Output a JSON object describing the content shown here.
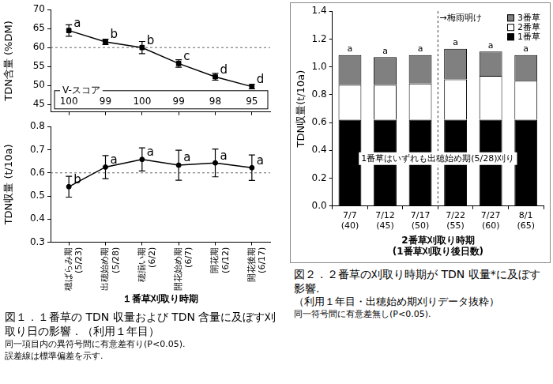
{
  "chart_data": [
    {
      "type": "line",
      "y_label": "TDN含量 (%DM)",
      "categories": [
        [
          "穂ばらみ期",
          "(5/23)"
        ],
        [
          "出穂始め期",
          "(5/28)"
        ],
        [
          "穂揃い期",
          "(6/2)"
        ],
        [
          "開花始め期",
          "(6/7)"
        ],
        [
          "開花期",
          "(6/12)"
        ],
        [
          "開花後期",
          "(6/17)"
        ]
      ],
      "values": [
        64.5,
        61.5,
        60.0,
        55.8,
        52.3,
        49.7
      ],
      "errors": [
        1.5,
        0.7,
        1.6,
        1.0,
        0.9,
        0.6
      ],
      "significance_letters": [
        "a",
        "b",
        "b",
        "c",
        "d",
        "d"
      ],
      "color": "#000000",
      "marker": "square",
      "ylim": [
        43,
        70
      ],
      "yticks": [
        45,
        50,
        55,
        60,
        65,
        70
      ],
      "reference_line": 60,
      "v_score": {
        "label": "V-スコア",
        "values": [
          100,
          99,
          100,
          99,
          98,
          95
        ]
      },
      "tick_labels": "y",
      "grid": false
    },
    {
      "type": "line",
      "y_label": "TDN収量 (t/10a)",
      "x_label": "１番草刈取り時期",
      "categories": [
        [
          "穂ばらみ期",
          "(5/23)"
        ],
        [
          "出穂始め期",
          "(5/28)"
        ],
        [
          "穂揃い期",
          "(6/2)"
        ],
        [
          "開花始め期",
          "(6/7)"
        ],
        [
          "開花期",
          "(6/12)"
        ],
        [
          "開花後期",
          "(6/17)"
        ]
      ],
      "values": [
        0.54,
        0.625,
        0.658,
        0.633,
        0.643,
        0.622
      ],
      "errors": [
        0.045,
        0.05,
        0.05,
        0.065,
        0.06,
        0.055
      ],
      "significance_letters": [
        "b",
        "a",
        "a",
        "a",
        "a",
        "a"
      ],
      "color": "#000000",
      "marker": "circle",
      "ylim": [
        0.3,
        0.8
      ],
      "yticks": [
        0.3,
        0.4,
        0.5,
        0.6,
        0.7,
        0.8
      ],
      "reference_line": 0.6,
      "grid": false
    },
    {
      "type": "bar",
      "stacked": true,
      "y_label": "TDN収量(t/10a)",
      "x_label": [
        "2番草刈取り時期",
        "(1番草刈取り後日数)"
      ],
      "categories": [
        [
          "7/7",
          "(40)"
        ],
        [
          "7/12",
          "(45)"
        ],
        [
          "7/17",
          "(50)"
        ],
        [
          "7/22",
          "(55)"
        ],
        [
          "7/27",
          "(60)"
        ],
        [
          "8/1",
          "(65)"
        ]
      ],
      "series": [
        {
          "name": "1番草",
          "color": "#000000",
          "values": [
            0.62,
            0.62,
            0.62,
            0.62,
            0.62,
            0.62
          ]
        },
        {
          "name": "2番草",
          "color": "#ffffff",
          "values": [
            0.25,
            0.25,
            0.26,
            0.29,
            0.315,
            0.28
          ]
        },
        {
          "name": "3番草",
          "color": "#808080",
          "values": [
            0.215,
            0.2,
            0.205,
            0.22,
            0.175,
            0.185
          ]
        }
      ],
      "significance_letters": [
        "a",
        "a",
        "a",
        "a",
        "a",
        "a"
      ],
      "ylim": [
        0,
        1.4
      ],
      "yticks": [
        {
          "value": 0,
          "label": "0.0"
        },
        0.2,
        0.4,
        0.6,
        0.8,
        {
          "value": 1,
          "label": "1.0"
        },
        1.2,
        1.4
      ],
      "legend": "upper right",
      "annotations": [
        {
          "text": "1番草はいずれも出穂始め期(5/28)刈り"
        }
      ],
      "divider": {
        "text": "→梅雨明け",
        "between": [
          "7/17",
          "7/22"
        ]
      },
      "grid": false
    }
  ],
  "captions": [
    {
      "title": "図１．１番草の TDN 収量および TDN 含量に及ぼす刈取り日の影響．（利用１年目）",
      "notes": [
        "同一項目内の異符号間に有意差有り(P<0.05).",
        "誤差線は標準偏差を示す."
      ]
    },
    {
      "title": "図２．２番草の刈取り時期が TDN 収量*に及ぼす影響.",
      "subtitle": "（利用１年目・出穂始め期刈りデータ抜粋）",
      "notes": [
        "同一符号間に有意差無し(P<0.05)."
      ]
    }
  ]
}
